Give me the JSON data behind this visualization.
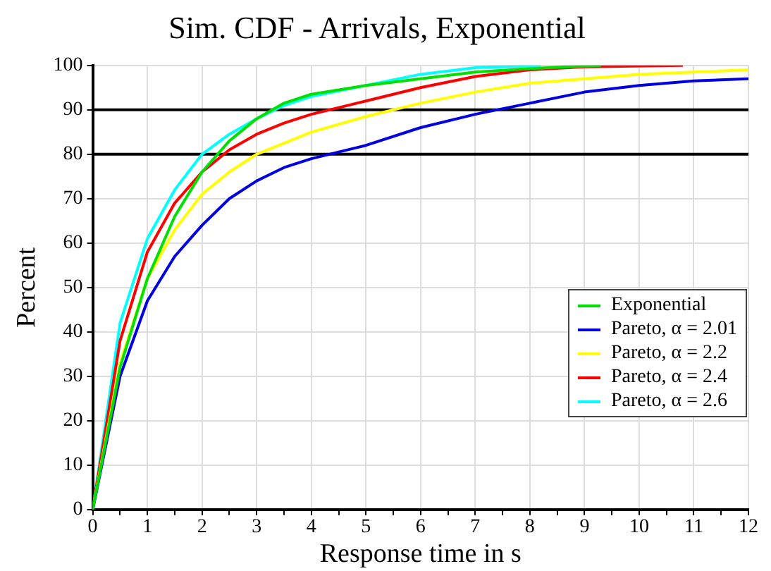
{
  "chart_data": {
    "type": "line",
    "title": "Sim. CDF - Arrivals, Exponential",
    "xlabel": "Response time in s",
    "ylabel": "Percent",
    "xlim": [
      0,
      12
    ],
    "ylim": [
      0,
      100
    ],
    "xticks": [
      0,
      {
        "value": 0.5,
        "label": null
      },
      1,
      {
        "value": 1.5,
        "label": null
      },
      2,
      {
        "value": 2.5,
        "label": null
      },
      3,
      {
        "value": 3.5,
        "label": null
      },
      4,
      {
        "value": 4.5,
        "label": null
      },
      5,
      {
        "value": 5.5,
        "label": null
      },
      6,
      {
        "value": 6.5,
        "label": null
      },
      7,
      {
        "value": 7.5,
        "label": null
      },
      8,
      {
        "value": 8.5,
        "label": null
      },
      9,
      {
        "value": 9.5,
        "label": null
      },
      10,
      {
        "value": 10.5,
        "label": null
      },
      11,
      {
        "value": 11.5,
        "label": null
      },
      12
    ],
    "yticks": [
      0,
      10,
      20,
      30,
      40,
      50,
      60,
      70,
      80,
      90,
      100
    ],
    "grid": true,
    "legend": "right",
    "marker": "none",
    "line_style": "solid",
    "ref_lines": [
      {
        "axis": "y",
        "value": 80,
        "color": "#000000"
      },
      {
        "axis": "y",
        "value": 90,
        "color": "#000000"
      }
    ],
    "series": [
      {
        "name": "Exponential",
        "color": "#00e000",
        "x": [
          0,
          0.5,
          1,
          1.5,
          2,
          2.5,
          3,
          3.5,
          4,
          5,
          6,
          7,
          8,
          9.3
        ],
        "values": [
          0,
          32,
          52,
          66,
          76,
          83,
          88,
          91.5,
          93.5,
          95.5,
          97,
          98.5,
          99.3,
          100
        ]
      },
      {
        "name": "Pareto, α = 2.01",
        "color": "#0000e0",
        "x": [
          0,
          0.5,
          1,
          1.5,
          2,
          2.5,
          3,
          3.5,
          4,
          4.5,
          5,
          6,
          7,
          8,
          9,
          10,
          11,
          12
        ],
        "values": [
          0,
          30,
          47,
          57,
          64,
          70,
          74,
          77,
          79,
          80.5,
          82,
          86,
          89,
          91.5,
          94,
          95.5,
          96.5,
          97
        ]
      },
      {
        "name": "Pareto, α = 2.2",
        "color": "#ffff00",
        "x": [
          0,
          0.5,
          1,
          1.5,
          2,
          2.5,
          3,
          3.5,
          4,
          5,
          6,
          7,
          8,
          9,
          10,
          11,
          12
        ],
        "values": [
          0,
          33,
          52,
          63,
          71,
          76,
          80,
          82.5,
          85,
          88.5,
          91.5,
          94,
          96,
          97,
          98,
          98.5,
          99
        ]
      },
      {
        "name": "Pareto, α = 2.4",
        "color": "#ff0000",
        "x": [
          0,
          0.5,
          1,
          1.5,
          2,
          2.5,
          3,
          3.5,
          4,
          5,
          6,
          7,
          8,
          9,
          10.8
        ],
        "values": [
          0,
          38,
          58,
          69,
          76,
          81,
          84.5,
          87,
          89,
          92,
          95,
          97.5,
          99,
          99.7,
          100
        ]
      },
      {
        "name": "Pareto, α = 2.6",
        "color": "#00ffff",
        "x": [
          0,
          0.5,
          1,
          1.5,
          2,
          2.5,
          3,
          3.5,
          4,
          5,
          6,
          7,
          8.2
        ],
        "values": [
          0,
          42,
          61,
          72,
          80,
          84.5,
          88,
          91,
          93,
          95.5,
          98,
          99.5,
          100
        ]
      }
    ]
  }
}
